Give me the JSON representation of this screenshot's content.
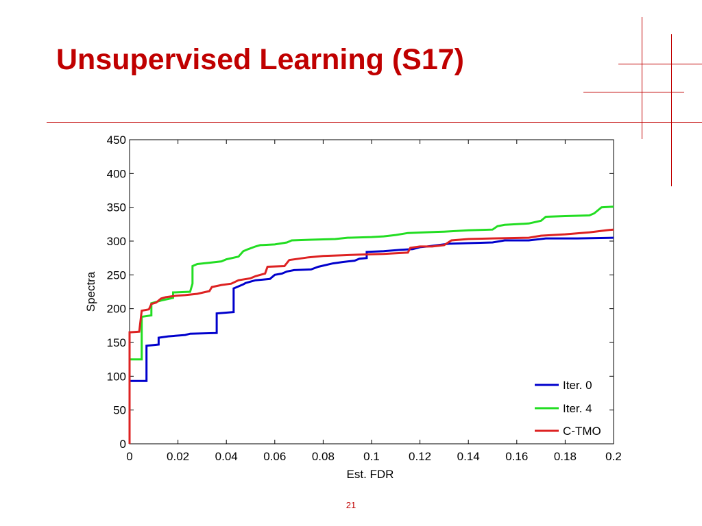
{
  "slide": {
    "title": "Unsupervised Learning (S17)",
    "page_number": "21",
    "accent_color": "#c00000"
  },
  "chart_data": {
    "type": "line",
    "title": "",
    "xlabel": "Est. FDR",
    "ylabel": "Spectra",
    "xlim": [
      0,
      0.2
    ],
    "ylim": [
      0,
      450
    ],
    "x_ticks": [
      "0",
      "0.02",
      "0.04",
      "0.06",
      "0.08",
      "0.1",
      "0.12",
      "0.14",
      "0.16",
      "0.18",
      "0.2"
    ],
    "y_ticks": [
      "0",
      "50",
      "100",
      "150",
      "200",
      "250",
      "300",
      "350",
      "400",
      "450"
    ],
    "grid": false,
    "legend_position": "bottom-right",
    "series": [
      {
        "name": "Iter. 0",
        "color": "#0000cc",
        "points": [
          [
            0,
            0
          ],
          [
            0,
            93
          ],
          [
            0.007,
            93
          ],
          [
            0.007,
            145
          ],
          [
            0.012,
            147
          ],
          [
            0.012,
            157
          ],
          [
            0.016,
            159
          ],
          [
            0.023,
            161
          ],
          [
            0.025,
            163
          ],
          [
            0.036,
            164
          ],
          [
            0.036,
            193
          ],
          [
            0.043,
            195
          ],
          [
            0.043,
            230
          ],
          [
            0.045,
            233
          ],
          [
            0.047,
            236
          ],
          [
            0.048,
            238
          ],
          [
            0.05,
            240
          ],
          [
            0.052,
            242
          ],
          [
            0.058,
            244
          ],
          [
            0.06,
            250
          ],
          [
            0.063,
            252
          ],
          [
            0.065,
            255
          ],
          [
            0.068,
            257
          ],
          [
            0.075,
            258
          ],
          [
            0.078,
            262
          ],
          [
            0.084,
            267
          ],
          [
            0.088,
            269
          ],
          [
            0.093,
            271
          ],
          [
            0.095,
            274
          ],
          [
            0.098,
            275
          ],
          [
            0.098,
            284
          ],
          [
            0.105,
            285
          ],
          [
            0.112,
            287
          ],
          [
            0.117,
            288
          ],
          [
            0.12,
            291
          ],
          [
            0.123,
            292
          ],
          [
            0.132,
            296
          ],
          [
            0.14,
            297
          ],
          [
            0.15,
            298
          ],
          [
            0.155,
            301
          ],
          [
            0.165,
            301
          ],
          [
            0.172,
            304
          ],
          [
            0.185,
            304
          ],
          [
            0.2,
            305
          ]
        ]
      },
      {
        "name": "Iter. 4",
        "color": "#22dd22",
        "points": [
          [
            0,
            125
          ],
          [
            0.005,
            125
          ],
          [
            0.005,
            188
          ],
          [
            0.009,
            190
          ],
          [
            0.009,
            208
          ],
          [
            0.011,
            210
          ],
          [
            0.013,
            212
          ],
          [
            0.018,
            216
          ],
          [
            0.018,
            224
          ],
          [
            0.025,
            225
          ],
          [
            0.026,
            237
          ],
          [
            0.026,
            263
          ],
          [
            0.028,
            266
          ],
          [
            0.033,
            268
          ],
          [
            0.038,
            270
          ],
          [
            0.04,
            273
          ],
          [
            0.045,
            277
          ],
          [
            0.047,
            285
          ],
          [
            0.049,
            288
          ],
          [
            0.052,
            292
          ],
          [
            0.054,
            294
          ],
          [
            0.06,
            295
          ],
          [
            0.065,
            298
          ],
          [
            0.067,
            301
          ],
          [
            0.075,
            302
          ],
          [
            0.085,
            303
          ],
          [
            0.09,
            305
          ],
          [
            0.1,
            306
          ],
          [
            0.105,
            307
          ],
          [
            0.11,
            309
          ],
          [
            0.115,
            312
          ],
          [
            0.122,
            313
          ],
          [
            0.13,
            314
          ],
          [
            0.14,
            316
          ],
          [
            0.15,
            317
          ],
          [
            0.152,
            322
          ],
          [
            0.155,
            324
          ],
          [
            0.165,
            326
          ],
          [
            0.17,
            330
          ],
          [
            0.172,
            336
          ],
          [
            0.18,
            337
          ],
          [
            0.19,
            338
          ],
          [
            0.192,
            341
          ],
          [
            0.195,
            350
          ],
          [
            0.2,
            351
          ]
        ]
      },
      {
        "name": "C-TMO",
        "color": "#dd2222",
        "points": [
          [
            0,
            0
          ],
          [
            0,
            165
          ],
          [
            0.004,
            166
          ],
          [
            0.005,
            197
          ],
          [
            0.008,
            199
          ],
          [
            0.009,
            207
          ],
          [
            0.011,
            209
          ],
          [
            0.013,
            215
          ],
          [
            0.015,
            217
          ],
          [
            0.019,
            219
          ],
          [
            0.023,
            220
          ],
          [
            0.028,
            222
          ],
          [
            0.033,
            226
          ],
          [
            0.034,
            232
          ],
          [
            0.038,
            235
          ],
          [
            0.042,
            237
          ],
          [
            0.045,
            242
          ],
          [
            0.05,
            245
          ],
          [
            0.052,
            248
          ],
          [
            0.056,
            252
          ],
          [
            0.057,
            262
          ],
          [
            0.064,
            263
          ],
          [
            0.066,
            272
          ],
          [
            0.07,
            274
          ],
          [
            0.074,
            276
          ],
          [
            0.08,
            278
          ],
          [
            0.088,
            279
          ],
          [
            0.095,
            280
          ],
          [
            0.105,
            281
          ],
          [
            0.115,
            283
          ],
          [
            0.116,
            290
          ],
          [
            0.12,
            292
          ],
          [
            0.125,
            292
          ],
          [
            0.13,
            294
          ],
          [
            0.133,
            301
          ],
          [
            0.14,
            303
          ],
          [
            0.15,
            304
          ],
          [
            0.165,
            305
          ],
          [
            0.17,
            308
          ],
          [
            0.18,
            310
          ],
          [
            0.19,
            313
          ],
          [
            0.197,
            316
          ],
          [
            0.2,
            317
          ]
        ]
      }
    ]
  }
}
